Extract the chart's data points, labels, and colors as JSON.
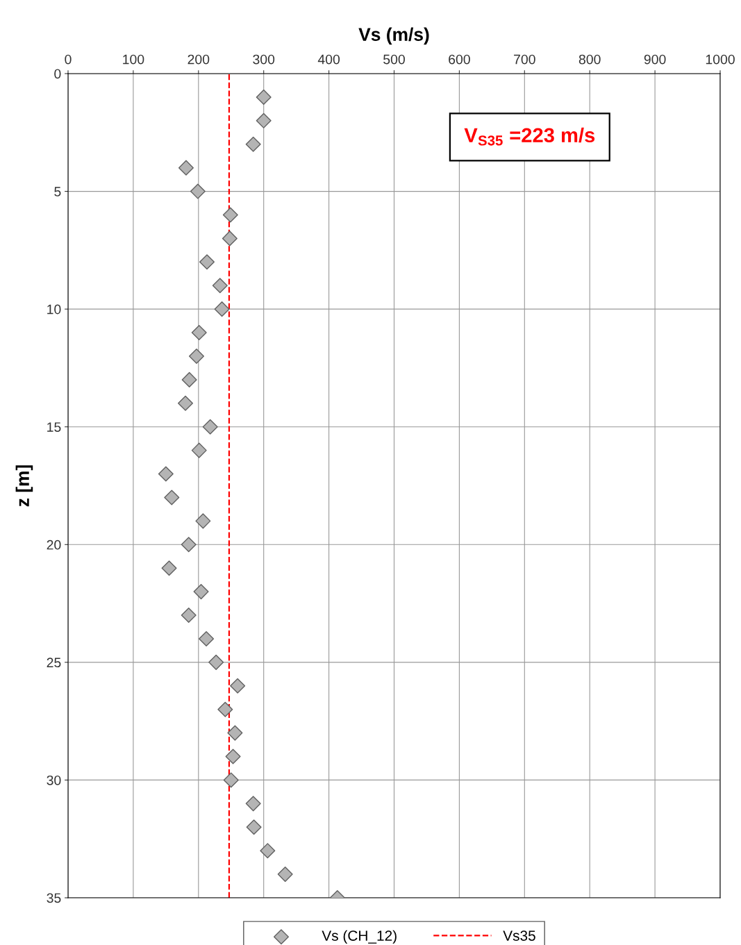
{
  "chart_data": {
    "type": "scatter",
    "xlabel": "Vs (m/s)",
    "ylabel": "z [m]",
    "series": [
      {
        "name": "Vs (CH_12)",
        "color": "#b4b4b4",
        "marker": "diamond",
        "x": [
          300,
          300,
          284,
          181,
          199,
          249,
          248,
          213,
          233,
          236,
          201,
          197,
          186,
          180,
          218,
          201,
          150,
          159,
          207,
          185,
          155,
          204,
          185,
          212,
          227,
          260,
          241,
          256,
          253,
          250,
          284,
          285,
          306,
          333,
          413
        ],
        "values": [
          1,
          2,
          3,
          4,
          5,
          6,
          7,
          8,
          9,
          10,
          11,
          12,
          13,
          14,
          15,
          16,
          17,
          18,
          19,
          20,
          21,
          22,
          23,
          24,
          25,
          26,
          27,
          28,
          29,
          30,
          31,
          32,
          33,
          34,
          35
        ]
      }
    ],
    "ref_lines": [
      {
        "axis": "x",
        "value": 247,
        "label": "Vs35",
        "color": "#ff0000",
        "line_style": "dashed"
      }
    ],
    "annotations": [
      "V$_{S35}$ =223 m/s"
    ],
    "xlim": [
      0,
      1000
    ],
    "xticks": [
      0,
      100,
      200,
      300,
      400,
      500,
      600,
      700,
      800,
      900,
      1000
    ],
    "ylim": [
      35,
      0
    ],
    "yticks": [
      0,
      5,
      10,
      15,
      20,
      25,
      30,
      35
    ],
    "grid": true,
    "legend": "bottom"
  }
}
